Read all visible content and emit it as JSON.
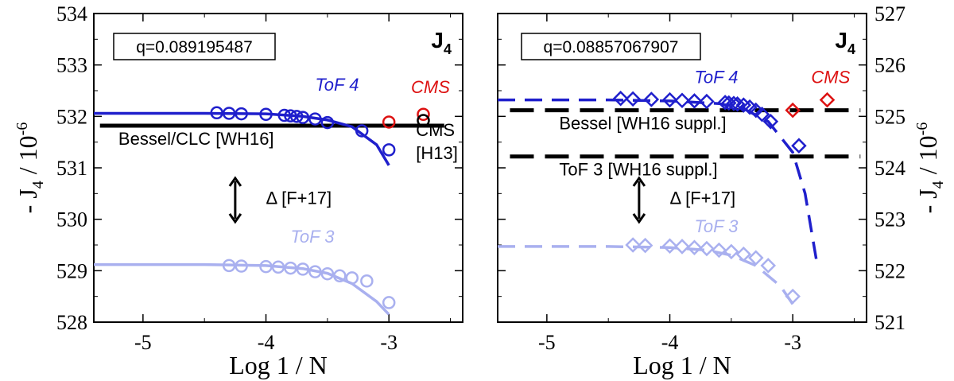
{
  "chart_data": [
    {
      "type": "line",
      "panel": "left",
      "title": "J4",
      "title_main": "J",
      "title_sub": "4",
      "xlabel": "Log  1 / N",
      "ylabel": "- J4  /  10^-6",
      "ylabel_parts": {
        "pre": "- J",
        "sub": "4",
        "mid": "  /  10",
        "sup": "-6"
      },
      "xlim": [
        -5.4,
        -2.4
      ],
      "ylim": [
        528,
        534
      ],
      "xticks": [
        -5,
        -4,
        -3
      ],
      "xtick_labels": [
        "-5",
        "-4",
        "-3"
      ],
      "yticks": [
        528,
        529,
        530,
        531,
        532,
        533,
        534
      ],
      "ytick_labels": [
        "528",
        "529",
        "530",
        "531",
        "532",
        "533",
        "534"
      ],
      "q_label": "q=0.089195487",
      "references": [
        {
          "name": "Bessel/CLC [WH16]",
          "y": 531.82,
          "style": "solid",
          "x_range": [
            -5.35,
            -2.55
          ],
          "color": "#000000"
        }
      ],
      "series": [
        {
          "name": "ToF 4",
          "color": "#1f1fcc",
          "marker": "circle",
          "points": [
            [
              -4.4,
              532.07
            ],
            [
              -4.3,
              532.06
            ],
            [
              -4.2,
              532.05
            ],
            [
              -4.0,
              532.04
            ],
            [
              -3.85,
              532.02
            ],
            [
              -3.8,
              532.01
            ],
            [
              -3.75,
              532.0
            ],
            [
              -3.7,
              531.98
            ],
            [
              -3.6,
              531.95
            ],
            [
              -3.5,
              531.88
            ],
            [
              -3.22,
              531.72
            ],
            [
              -3.0,
              531.35
            ]
          ],
          "fit": [
            [
              -5.4,
              532.06
            ],
            [
              -4.5,
              532.06
            ],
            [
              -4.0,
              532.05
            ],
            [
              -3.7,
              532.0
            ],
            [
              -3.5,
              531.93
            ],
            [
              -3.3,
              531.8
            ],
            [
              -3.1,
              531.45
            ],
            [
              -3.0,
              531.05
            ]
          ]
        },
        {
          "name": "ToF 3",
          "color": "#a9b0ef",
          "marker": "circle",
          "points": [
            [
              -4.3,
              529.1
            ],
            [
              -4.2,
              529.09
            ],
            [
              -4.0,
              529.08
            ],
            [
              -3.9,
              529.07
            ],
            [
              -3.8,
              529.05
            ],
            [
              -3.7,
              529.03
            ],
            [
              -3.6,
              528.98
            ],
            [
              -3.5,
              528.94
            ],
            [
              -3.4,
              528.9
            ],
            [
              -3.3,
              528.86
            ],
            [
              -3.18,
              528.8
            ],
            [
              -3.0,
              528.38
            ]
          ],
          "fit": [
            [
              -5.4,
              529.12
            ],
            [
              -4.5,
              529.12
            ],
            [
              -4.0,
              529.1
            ],
            [
              -3.7,
              529.04
            ],
            [
              -3.5,
              528.95
            ],
            [
              -3.3,
              528.75
            ],
            [
              -3.1,
              528.4
            ],
            [
              -3.0,
              528.15
            ]
          ]
        },
        {
          "name": "CMS",
          "color": "#dd1111",
          "marker": "circle",
          "points": [
            [
              -3.0,
              531.89
            ],
            [
              -2.72,
              532.04
            ]
          ]
        },
        {
          "name": "CMS [H13]",
          "color": "#000000",
          "marker": "circle",
          "points": [
            [
              -2.72,
              531.92
            ]
          ]
        }
      ],
      "labels": [
        {
          "text": "ToF 4",
          "color": "#1f1fcc",
          "at": [
            -3.6,
            532.5
          ]
        },
        {
          "text": "ToF 3",
          "color": "#a9b0ef",
          "at": [
            -3.8,
            529.55
          ]
        },
        {
          "text": "CMS",
          "color": "#dd1111",
          "at": [
            -2.82,
            532.45
          ]
        },
        {
          "text": "CMS",
          "color": "#000000",
          "at": [
            -2.78,
            531.62
          ]
        },
        {
          "text": "[H13]",
          "color": "#000000",
          "at": [
            -2.78,
            531.17
          ]
        },
        {
          "text": "Bessel/CLC [WH16]",
          "color": "#000000",
          "at": [
            -5.2,
            531.45
          ]
        },
        {
          "text": "Δ [F+17]",
          "color": "#000000",
          "at": [
            -4.0,
            530.3
          ]
        }
      ],
      "delta_arrow": {
        "x": -4.25,
        "y_from": 529.95,
        "y_to": 530.8
      }
    },
    {
      "type": "line",
      "panel": "right",
      "title": "J4",
      "title_main": "J",
      "title_sub": "4",
      "xlabel": "Log  1 / N",
      "ylabel": "- J4  /  10^-6",
      "ylabel_parts": {
        "pre": "- J",
        "sub": "4",
        "mid": "  /  10",
        "sup": "-6"
      },
      "xlim": [
        -5.4,
        -2.4
      ],
      "ylim": [
        521,
        527
      ],
      "xticks": [
        -5,
        -4,
        -3
      ],
      "xtick_labels": [
        "-5",
        "-4",
        "-3"
      ],
      "yticks": [
        521,
        522,
        523,
        524,
        525,
        526,
        527
      ],
      "ytick_labels": [
        "521",
        "522",
        "523",
        "524",
        "525",
        "526",
        "527"
      ],
      "q_label": "q=0.08857067907",
      "references": [
        {
          "name": "Bessel [WH16 suppl.]",
          "y": 525.12,
          "style": "dashed",
          "x_range": [
            -5.3,
            -2.45
          ],
          "color": "#000000"
        },
        {
          "name": "ToF 3 [WH16 suppl.]",
          "y": 524.22,
          "style": "dashed",
          "x_range": [
            -5.3,
            -2.45
          ],
          "color": "#000000"
        }
      ],
      "series": [
        {
          "name": "ToF 4",
          "color": "#1f1fcc",
          "marker": "diamond",
          "points": [
            [
              -4.4,
              525.35
            ],
            [
              -4.3,
              525.34
            ],
            [
              -4.15,
              525.33
            ],
            [
              -4.0,
              525.32
            ],
            [
              -3.9,
              525.31
            ],
            [
              -3.8,
              525.3
            ],
            [
              -3.7,
              525.29
            ],
            [
              -3.55,
              525.27
            ],
            [
              -3.52,
              525.26
            ],
            [
              -3.48,
              525.25
            ],
            [
              -3.45,
              525.24
            ],
            [
              -3.4,
              525.22
            ],
            [
              -3.35,
              525.18
            ],
            [
              -3.3,
              525.12
            ],
            [
              -3.25,
              525.04
            ],
            [
              -3.18,
              524.9
            ],
            [
              -2.95,
              524.43
            ]
          ],
          "fit": [
            [
              -5.4,
              525.32
            ],
            [
              -4.5,
              525.32
            ],
            [
              -4.0,
              525.3
            ],
            [
              -3.6,
              525.25
            ],
            [
              -3.4,
              525.15
            ],
            [
              -3.2,
              524.9
            ],
            [
              -3.0,
              524.3
            ],
            [
              -2.9,
              523.5
            ],
            [
              -2.8,
              522.1
            ]
          ]
        },
        {
          "name": "ToF 3",
          "color": "#a9b0ef",
          "marker": "diamond",
          "points": [
            [
              -4.3,
              522.5
            ],
            [
              -4.2,
              522.49
            ],
            [
              -4.0,
              522.48
            ],
            [
              -3.9,
              522.47
            ],
            [
              -3.8,
              522.45
            ],
            [
              -3.7,
              522.43
            ],
            [
              -3.6,
              522.4
            ],
            [
              -3.5,
              522.37
            ],
            [
              -3.4,
              522.32
            ],
            [
              -3.3,
              522.25
            ],
            [
              -3.2,
              522.1
            ],
            [
              -3.0,
              521.5
            ]
          ],
          "fit": [
            [
              -5.4,
              522.47
            ],
            [
              -4.5,
              522.47
            ],
            [
              -4.0,
              522.45
            ],
            [
              -3.7,
              522.4
            ],
            [
              -3.5,
              522.3
            ],
            [
              -3.3,
              522.1
            ],
            [
              -3.1,
              521.7
            ],
            [
              -3.0,
              521.35
            ]
          ]
        },
        {
          "name": "CMS",
          "color": "#dd1111",
          "marker": "diamond",
          "points": [
            [
              -3.0,
              525.12
            ],
            [
              -2.72,
              525.32
            ]
          ]
        }
      ],
      "labels": [
        {
          "text": "ToF 4",
          "color": "#1f1fcc",
          "at": [
            -3.8,
            525.65
          ]
        },
        {
          "text": "ToF 3",
          "color": "#a9b0ef",
          "at": [
            -3.8,
            522.75
          ]
        },
        {
          "text": "CMS",
          "color": "#dd1111",
          "at": [
            -2.85,
            525.65
          ]
        },
        {
          "text": "Bessel [WH16 suppl.]",
          "color": "#000000",
          "at": [
            -4.9,
            524.75
          ]
        },
        {
          "text": "ToF 3 [WH16 suppl.]",
          "color": "#000000",
          "at": [
            -4.9,
            523.85
          ]
        },
        {
          "text": "Δ [F+17]",
          "color": "#000000",
          "at": [
            -4.0,
            523.3
          ]
        }
      ],
      "delta_arrow": {
        "x": -4.25,
        "y_from": 522.95,
        "y_to": 523.8
      }
    }
  ]
}
